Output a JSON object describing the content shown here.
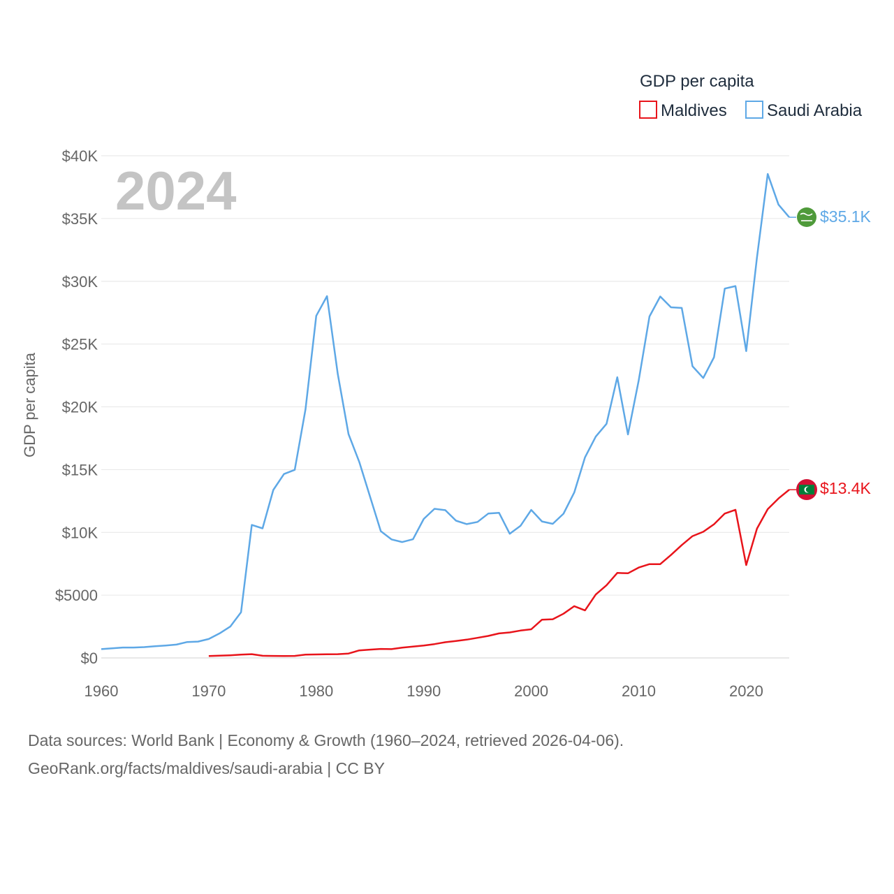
{
  "chart_data": {
    "type": "line",
    "legend_title": "GDP per capita",
    "year_label": "2024",
    "ylabel": "GDP per capita",
    "xlim": [
      1960,
      2024
    ],
    "ylim": [
      0,
      40000
    ],
    "x_ticks": [
      1960,
      1970,
      1980,
      1990,
      2000,
      2010,
      2020
    ],
    "y_ticks": [
      {
        "value": 0,
        "label": "$0"
      },
      {
        "value": 5000,
        "label": "$5000"
      },
      {
        "value": 10000,
        "label": "$10K"
      },
      {
        "value": 15000,
        "label": "$15K"
      },
      {
        "value": 20000,
        "label": "$20K"
      },
      {
        "value": 25000,
        "label": "$25K"
      },
      {
        "value": 30000,
        "label": "$30K"
      },
      {
        "value": 35000,
        "label": "$35K"
      },
      {
        "value": 40000,
        "label": "$40K"
      }
    ],
    "series": [
      {
        "name": "Maldives",
        "color": "#e8141b",
        "end_label": "$13.4K",
        "flag_icon": "maldives-flag-icon",
        "start_year": 1970,
        "values": [
          150,
          180,
          210,
          260,
          300,
          170,
          160,
          150,
          160,
          260,
          280,
          290,
          300,
          350,
          600,
          660,
          720,
          700,
          820,
          900,
          990,
          1100,
          1250,
          1350,
          1460,
          1600,
          1750,
          1950,
          2030,
          2180,
          2280,
          3050,
          3080,
          3520,
          4120,
          3790,
          5050,
          5790,
          6770,
          6740,
          7200,
          7470,
          7470,
          8200,
          8990,
          9700,
          10050,
          10650,
          11500,
          11800,
          7400,
          10300,
          11850,
          12700,
          13400
        ]
      },
      {
        "name": "Saudi Arabia",
        "color": "#5ea8e6",
        "end_label": "$35.1K",
        "flag_icon": "saudi-arabia-flag-icon",
        "start_year": 1960,
        "values": [
          700,
          760,
          830,
          830,
          860,
          930,
          990,
          1060,
          1270,
          1300,
          1510,
          1950,
          2500,
          3640,
          10590,
          10320,
          13380,
          14650,
          14980,
          19800,
          27250,
          28820,
          22620,
          17830,
          15610,
          12850,
          10100,
          9440,
          9230,
          9450,
          11070,
          11880,
          11770,
          10930,
          10660,
          10830,
          11500,
          11560,
          9890,
          10520,
          11790,
          10870,
          10680,
          11490,
          13180,
          15980,
          17630,
          18650,
          22360,
          17800,
          22110,
          27200,
          28790,
          27930,
          27880,
          23230,
          22300,
          23950,
          29420,
          29620,
          24440,
          31900,
          38550,
          36110,
          35100
        ]
      }
    ]
  },
  "footer": {
    "line1": "Data sources: World Bank | Economy & Growth (1960–2024, retrieved 2026-04-06).",
    "line2": "GeoRank.org/facts/maldives/saudi-arabia | CC BY"
  }
}
